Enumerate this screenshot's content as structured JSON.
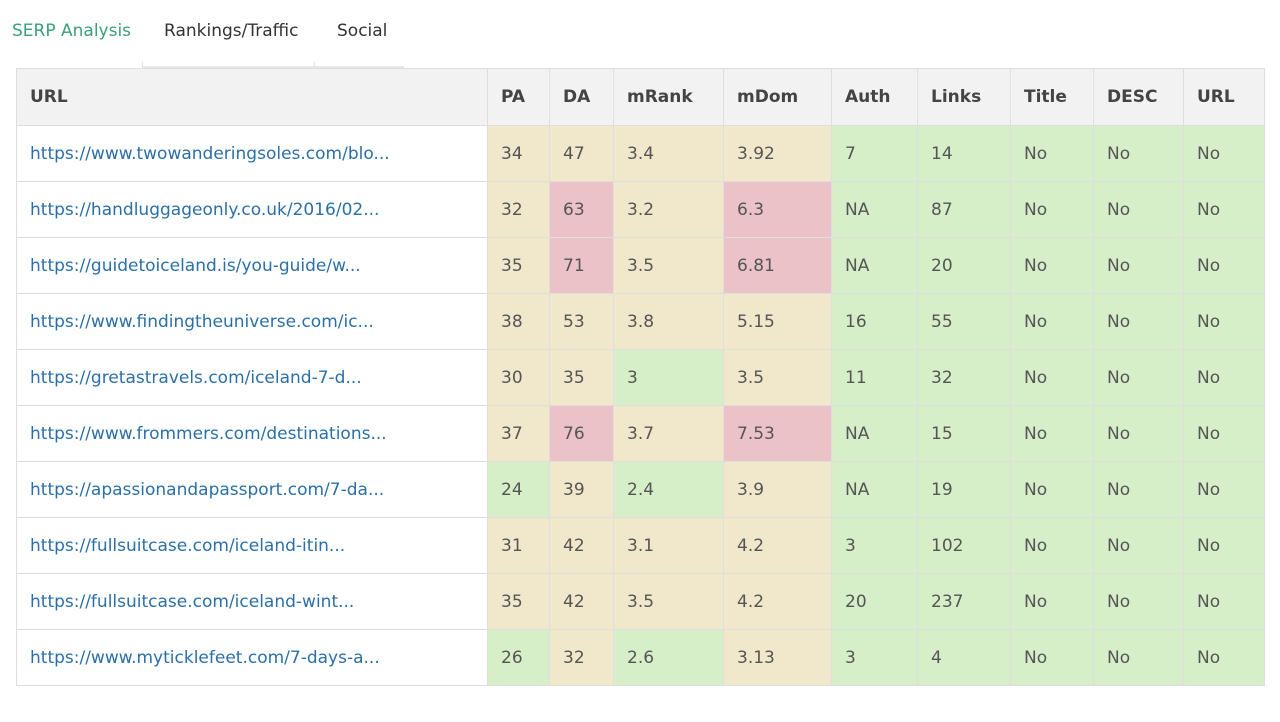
{
  "tabs": [
    {
      "label": "SERP Analysis",
      "active": true
    },
    {
      "label": "Rankings/Traffic",
      "active": false
    },
    {
      "label": "Social",
      "active": false
    }
  ],
  "colors": {
    "accent": "#3a9f78",
    "link": "#2a6fa8",
    "cell_yellow": "#f1e7cb",
    "cell_green": "#d6efc8",
    "cell_red": "#ebc2c8"
  },
  "table": {
    "headers": [
      "URL",
      "PA",
      "DA",
      "mRank",
      "mDom",
      "Auth",
      "Links",
      "Title",
      "DESC",
      "URL"
    ],
    "rows": [
      {
        "url": "https://www.twowanderingsoles.com/blo...",
        "values": [
          "34",
          "47",
          "3.4",
          "3.92",
          "7",
          "14",
          "No",
          "No",
          "No"
        ],
        "colors": [
          "yellow",
          "yellow",
          "yellow",
          "yellow",
          "green",
          "green",
          "green",
          "green",
          "green"
        ]
      },
      {
        "url": "https://handluggageonly.co.uk/2016/02...",
        "values": [
          "32",
          "63",
          "3.2",
          "6.3",
          "NA",
          "87",
          "No",
          "No",
          "No"
        ],
        "colors": [
          "yellow",
          "red",
          "yellow",
          "red",
          "green",
          "green",
          "green",
          "green",
          "green"
        ]
      },
      {
        "url": "https://guidetoiceland.is/you-guide/w...",
        "values": [
          "35",
          "71",
          "3.5",
          "6.81",
          "NA",
          "20",
          "No",
          "No",
          "No"
        ],
        "colors": [
          "yellow",
          "red",
          "yellow",
          "red",
          "green",
          "green",
          "green",
          "green",
          "green"
        ]
      },
      {
        "url": "https://www.findingtheuniverse.com/ic...",
        "values": [
          "38",
          "53",
          "3.8",
          "5.15",
          "16",
          "55",
          "No",
          "No",
          "No"
        ],
        "colors": [
          "yellow",
          "yellow",
          "yellow",
          "yellow",
          "green",
          "green",
          "green",
          "green",
          "green"
        ]
      },
      {
        "url": "https://gretastravels.com/iceland-7-d...",
        "values": [
          "30",
          "35",
          "3",
          "3.5",
          "11",
          "32",
          "No",
          "No",
          "No"
        ],
        "colors": [
          "yellow",
          "yellow",
          "green",
          "yellow",
          "green",
          "green",
          "green",
          "green",
          "green"
        ]
      },
      {
        "url": "https://www.frommers.com/destinations...",
        "values": [
          "37",
          "76",
          "3.7",
          "7.53",
          "NA",
          "15",
          "No",
          "No",
          "No"
        ],
        "colors": [
          "yellow",
          "red",
          "yellow",
          "red",
          "green",
          "green",
          "green",
          "green",
          "green"
        ]
      },
      {
        "url": "https://apassionandapassport.com/7-da...",
        "values": [
          "24",
          "39",
          "2.4",
          "3.9",
          "NA",
          "19",
          "No",
          "No",
          "No"
        ],
        "colors": [
          "green",
          "yellow",
          "green",
          "yellow",
          "green",
          "green",
          "green",
          "green",
          "green"
        ]
      },
      {
        "url": "https://fullsuitcase.com/iceland-itin...",
        "values": [
          "31",
          "42",
          "3.1",
          "4.2",
          "3",
          "102",
          "No",
          "No",
          "No"
        ],
        "colors": [
          "yellow",
          "yellow",
          "yellow",
          "yellow",
          "green",
          "green",
          "green",
          "green",
          "green"
        ]
      },
      {
        "url": "https://fullsuitcase.com/iceland-wint...",
        "values": [
          "35",
          "42",
          "3.5",
          "4.2",
          "20",
          "237",
          "No",
          "No",
          "No"
        ],
        "colors": [
          "yellow",
          "yellow",
          "yellow",
          "yellow",
          "green",
          "green",
          "green",
          "green",
          "green"
        ]
      },
      {
        "url": "https://www.myticklefeet.com/7-days-a...",
        "values": [
          "26",
          "32",
          "2.6",
          "3.13",
          "3",
          "4",
          "No",
          "No",
          "No"
        ],
        "colors": [
          "green",
          "yellow",
          "green",
          "yellow",
          "green",
          "green",
          "green",
          "green",
          "green"
        ]
      }
    ]
  }
}
